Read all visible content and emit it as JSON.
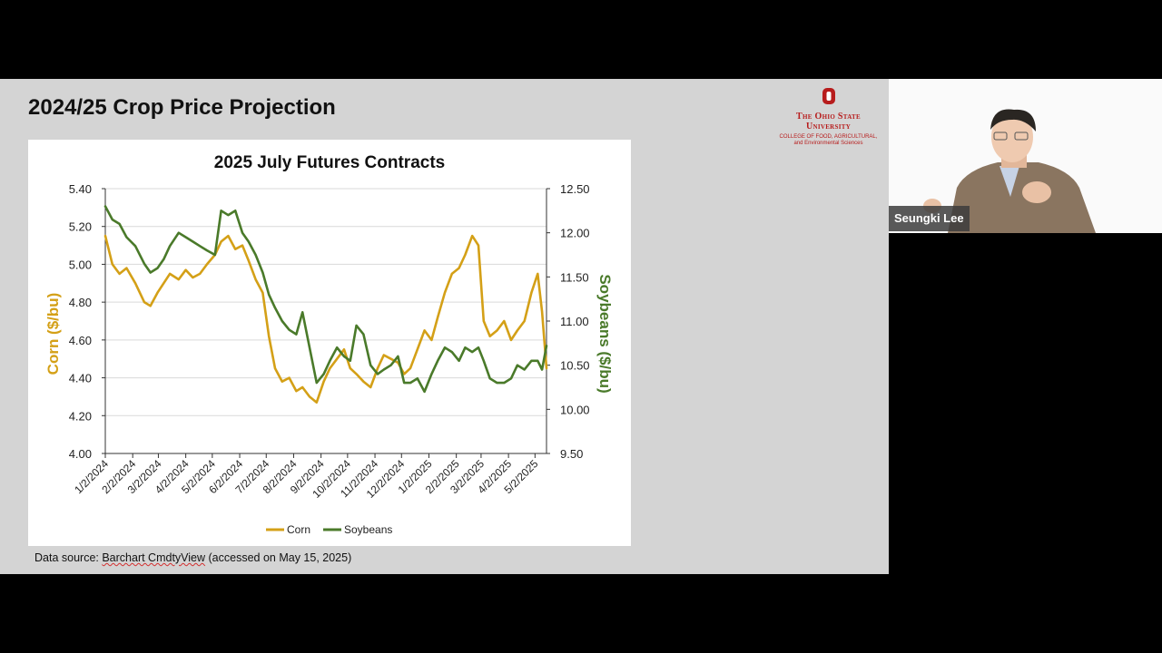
{
  "slide": {
    "title": "2024/25 Crop Price Projection",
    "logo": {
      "line1": "The Ohio State",
      "line2": "University",
      "line3": "College of Food, Agricultural,",
      "line4": "and Environmental Sciences"
    },
    "source_prefix": "Data source: ",
    "source_link": "Barchart CmdtyView",
    "source_suffix": " (accessed on May 15, 2025)"
  },
  "video": {
    "participant_name": "Seungki Lee"
  },
  "colors": {
    "corn": "#d4a017",
    "soybeans": "#4a7a2a",
    "brand": "#b71c1c"
  },
  "chart_data": {
    "type": "line",
    "title": "2025 July Futures Contracts",
    "ylabel_left": "Corn ($/bu)",
    "ylabel_right": "Soybeans ($/bu)",
    "ylim_left": [
      4.0,
      5.4
    ],
    "ylim_right": [
      9.5,
      12.5
    ],
    "yticks_left": [
      "4.00",
      "4.20",
      "4.40",
      "4.60",
      "4.80",
      "5.00",
      "5.20",
      "5.40"
    ],
    "yticks_right": [
      "9.50",
      "10.00",
      "10.50",
      "11.00",
      "11.50",
      "12.00",
      "12.50"
    ],
    "xlim": [
      "2024-01-02",
      "2025-05-15"
    ],
    "xticks": [
      "1/2/2024",
      "2/2/2024",
      "3/2/2024",
      "4/2/2024",
      "5/2/2024",
      "6/2/2024",
      "7/2/2024",
      "8/2/2024",
      "9/2/2024",
      "10/2/2024",
      "11/2/2024",
      "12/2/2024",
      "1/2/2025",
      "2/2/2025",
      "3/2/2025",
      "4/2/2025",
      "5/2/2025"
    ],
    "grid": "horizontal",
    "legend_position": "bottom",
    "series": [
      {
        "name": "Corn",
        "axis": "left",
        "x": [
          "2024-01-02",
          "2024-01-10",
          "2024-01-18",
          "2024-01-26",
          "2024-02-05",
          "2024-02-15",
          "2024-02-22",
          "2024-03-01",
          "2024-03-08",
          "2024-03-15",
          "2024-03-25",
          "2024-04-02",
          "2024-04-10",
          "2024-04-18",
          "2024-04-26",
          "2024-05-05",
          "2024-05-12",
          "2024-05-20",
          "2024-05-28",
          "2024-06-05",
          "2024-06-12",
          "2024-06-20",
          "2024-06-28",
          "2024-07-05",
          "2024-07-12",
          "2024-07-20",
          "2024-07-28",
          "2024-08-05",
          "2024-08-12",
          "2024-08-20",
          "2024-08-28",
          "2024-09-05",
          "2024-09-12",
          "2024-09-20",
          "2024-09-28",
          "2024-10-05",
          "2024-10-12",
          "2024-10-20",
          "2024-10-28",
          "2024-11-05",
          "2024-11-12",
          "2024-11-20",
          "2024-11-28",
          "2024-12-05",
          "2024-12-12",
          "2024-12-20",
          "2024-12-28",
          "2025-01-05",
          "2025-01-12",
          "2025-01-20",
          "2025-01-28",
          "2025-02-05",
          "2025-02-12",
          "2025-02-20",
          "2025-02-27",
          "2025-03-05",
          "2025-03-12",
          "2025-03-20",
          "2025-03-28",
          "2025-04-05",
          "2025-04-12",
          "2025-04-20",
          "2025-04-28",
          "2025-05-05",
          "2025-05-10",
          "2025-05-15"
        ],
        "y": [
          5.15,
          5.0,
          4.95,
          4.98,
          4.9,
          4.8,
          4.78,
          4.85,
          4.9,
          4.95,
          4.92,
          4.97,
          4.93,
          4.95,
          5.0,
          5.05,
          5.12,
          5.15,
          5.08,
          5.1,
          5.02,
          4.92,
          4.85,
          4.62,
          4.45,
          4.38,
          4.4,
          4.33,
          4.35,
          4.3,
          4.27,
          4.38,
          4.45,
          4.5,
          4.55,
          4.45,
          4.42,
          4.38,
          4.35,
          4.45,
          4.52,
          4.5,
          4.48,
          4.42,
          4.45,
          4.55,
          4.65,
          4.6,
          4.72,
          4.85,
          4.95,
          4.98,
          5.05,
          5.15,
          5.1,
          4.7,
          4.62,
          4.65,
          4.7,
          4.6,
          4.65,
          4.7,
          4.85,
          4.95,
          4.75,
          4.45
        ]
      },
      {
        "name": "Soybeans",
        "axis": "right",
        "x": [
          "2024-01-02",
          "2024-01-10",
          "2024-01-18",
          "2024-01-26",
          "2024-02-05",
          "2024-02-15",
          "2024-02-22",
          "2024-03-01",
          "2024-03-08",
          "2024-03-15",
          "2024-03-25",
          "2024-04-02",
          "2024-04-10",
          "2024-04-18",
          "2024-04-26",
          "2024-05-05",
          "2024-05-12",
          "2024-05-20",
          "2024-05-28",
          "2024-06-05",
          "2024-06-12",
          "2024-06-20",
          "2024-06-28",
          "2024-07-05",
          "2024-07-12",
          "2024-07-20",
          "2024-07-28",
          "2024-08-05",
          "2024-08-12",
          "2024-08-20",
          "2024-08-28",
          "2024-09-05",
          "2024-09-12",
          "2024-09-20",
          "2024-09-28",
          "2024-10-05",
          "2024-10-12",
          "2024-10-20",
          "2024-10-28",
          "2024-11-05",
          "2024-11-12",
          "2024-11-20",
          "2024-11-28",
          "2024-12-05",
          "2024-12-12",
          "2024-12-20",
          "2024-12-28",
          "2025-01-05",
          "2025-01-12",
          "2025-01-20",
          "2025-01-28",
          "2025-02-05",
          "2025-02-12",
          "2025-02-20",
          "2025-02-27",
          "2025-03-05",
          "2025-03-12",
          "2025-03-20",
          "2025-03-28",
          "2025-04-05",
          "2025-04-12",
          "2025-04-20",
          "2025-04-28",
          "2025-05-05",
          "2025-05-10",
          "2025-05-15"
        ],
        "y": [
          12.3,
          12.15,
          12.1,
          11.95,
          11.85,
          11.65,
          11.55,
          11.6,
          11.7,
          11.85,
          12.0,
          11.95,
          11.9,
          11.85,
          11.8,
          11.75,
          12.25,
          12.2,
          12.25,
          12.0,
          11.9,
          11.75,
          11.55,
          11.3,
          11.15,
          11.0,
          10.9,
          10.85,
          11.1,
          10.7,
          10.3,
          10.4,
          10.55,
          10.7,
          10.6,
          10.55,
          10.95,
          10.85,
          10.5,
          10.4,
          10.45,
          10.5,
          10.6,
          10.3,
          10.3,
          10.35,
          10.2,
          10.4,
          10.55,
          10.7,
          10.65,
          10.55,
          10.7,
          10.65,
          10.7,
          10.55,
          10.35,
          10.3,
          10.3,
          10.35,
          10.5,
          10.45,
          10.55,
          10.55,
          10.45,
          10.72
        ]
      }
    ]
  }
}
